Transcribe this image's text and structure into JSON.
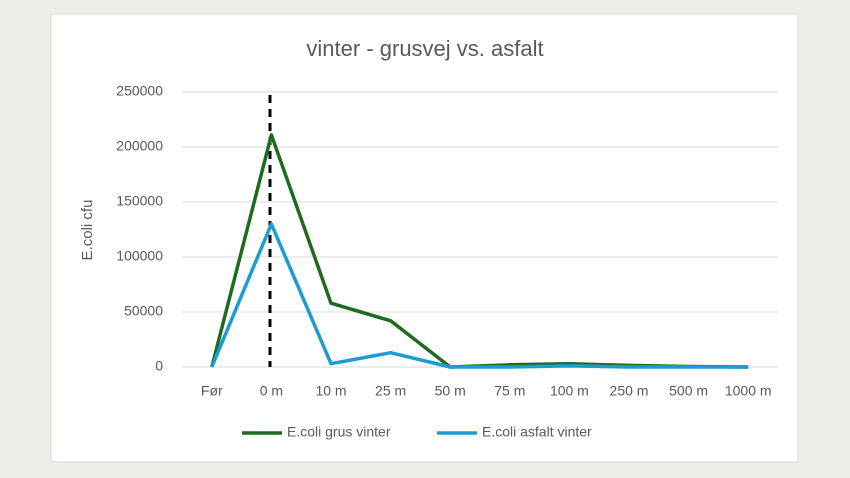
{
  "chart_data": {
    "type": "line",
    "title": "vinter - grusvej vs. asfalt",
    "y_label": "E.coli cfu",
    "categories": [
      "Før",
      "0 m",
      "10 m",
      "25 m",
      "50 m",
      "75 m",
      "100 m",
      "250 m",
      "500 m",
      "1000 m"
    ],
    "series": [
      {
        "name": "E.coli grus vinter",
        "color": "#1e6b1e",
        "values": [
          0,
          211000,
          58000,
          42000,
          0,
          2000,
          3000,
          1500,
          500,
          0
        ]
      },
      {
        "name": "E.coli asfalt vinter",
        "color": "#1b9cd3",
        "values": [
          0,
          130000,
          3000,
          13000,
          0,
          0,
          1000,
          0,
          0,
          0
        ]
      }
    ],
    "ylim": [
      0,
      250000
    ],
    "yticks": [
      0,
      50000,
      100000,
      150000,
      200000,
      250000
    ],
    "grid": true,
    "legend": "bottom"
  }
}
